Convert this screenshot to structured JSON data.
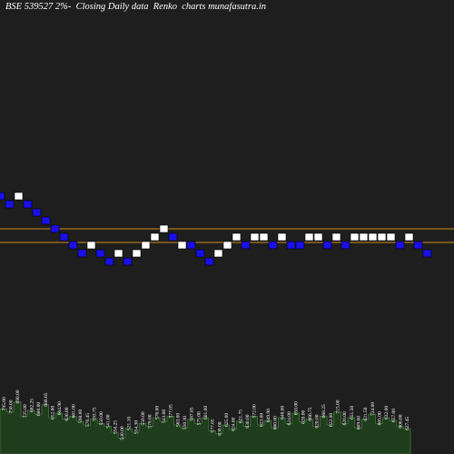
{
  "title": "BSE 539527 2%-  Closing Daily data  Renko  charts munafasutra.in",
  "colors": {
    "background": "#1e1e1e",
    "up_brick": "#ffffff",
    "down_brick": "#1a10e8",
    "brick_outline": "#000000",
    "support_line": "#d68a1c",
    "volume_fill": "#1f3d1d",
    "volume_stroke": "#3d7a35",
    "volume_label": "#ffffff"
  },
  "chart_data": {
    "type": "renko",
    "title": "BSE 539527 2%-  Closing Daily data  Renko  charts munafasutra.in",
    "bricks": {
      "direction": [
        "down",
        "down",
        "up",
        "down",
        "down",
        "down",
        "down",
        "down",
        "down",
        "down",
        "up",
        "down",
        "down",
        "up",
        "down",
        "up",
        "up",
        "up",
        "up",
        "down",
        "up",
        "down",
        "down",
        "down",
        "up",
        "up",
        "up",
        "down",
        "up",
        "up",
        "down",
        "up",
        "down",
        "down",
        "up",
        "up",
        "down",
        "up",
        "down",
        "up",
        "up",
        "up",
        "up",
        "up",
        "down",
        "up",
        "down",
        "down"
      ],
      "level": [
        12,
        11,
        12,
        11,
        10,
        9,
        8,
        7,
        6,
        5,
        6,
        5,
        4,
        5,
        4,
        5,
        6,
        7,
        8,
        7,
        6,
        6,
        5,
        4,
        5,
        6,
        7,
        6,
        7,
        7,
        6,
        7,
        6,
        6,
        7,
        7,
        6,
        7,
        6,
        7,
        7,
        7,
        7,
        7,
        6,
        7,
        6,
        5
      ]
    },
    "horizontal_lines": [
      "upper_support",
      "lower_support"
    ],
    "volume": {
      "labels": [
        "795.60",
        "750.00",
        "690.00",
        "725.00",
        "682.25",
        "680.00",
        "686.65",
        "652.00",
        "664.90",
        "620.00",
        "601.00",
        "598.00",
        "576.45",
        "593.75",
        "550.00",
        "541.00",
        "558.25",
        "540.00",
        "521.10",
        "554.30",
        "550.00",
        "578.00",
        "576.00",
        "543.00",
        "577.05",
        "563.00",
        "550.30",
        "587.85",
        "575.00",
        "601.00",
        "577.65",
        "630.00",
        "625.00",
        "624.00",
        "621.75",
        "630.00",
        "572.00",
        "623.00",
        "649.90",
        "660.00",
        "648.00",
        "624.00",
        "650.00",
        "620.00",
        "666.75",
        "620.00",
        "668.25",
        "622.00",
        "715.00",
        "620.00",
        "651.50",
        "609.00",
        "631.50",
        "724.00",
        "605.00",
        "632.00",
        "657.00",
        "606.00",
        "627.45"
      ],
      "relative_height": [
        0.62,
        0.58,
        0.72,
        0.52,
        0.6,
        0.55,
        0.68,
        0.5,
        0.56,
        0.48,
        0.52,
        0.45,
        0.4,
        0.48,
        0.42,
        0.38,
        0.3,
        0.22,
        0.35,
        0.3,
        0.42,
        0.38,
        0.5,
        0.45,
        0.52,
        0.4,
        0.36,
        0.48,
        0.42,
        0.5,
        0.32,
        0.28,
        0.4,
        0.34,
        0.45,
        0.38,
        0.52,
        0.4,
        0.46,
        0.36,
        0.5,
        0.42,
        0.56,
        0.44,
        0.48,
        0.38,
        0.52,
        0.4,
        0.58,
        0.42,
        0.5,
        0.36,
        0.48,
        0.55,
        0.42,
        0.5,
        0.46,
        0.38,
        0.35
      ],
      "y_axis": "none"
    },
    "grid": false,
    "legend": "none",
    "xlabel": "",
    "ylabel": ""
  }
}
